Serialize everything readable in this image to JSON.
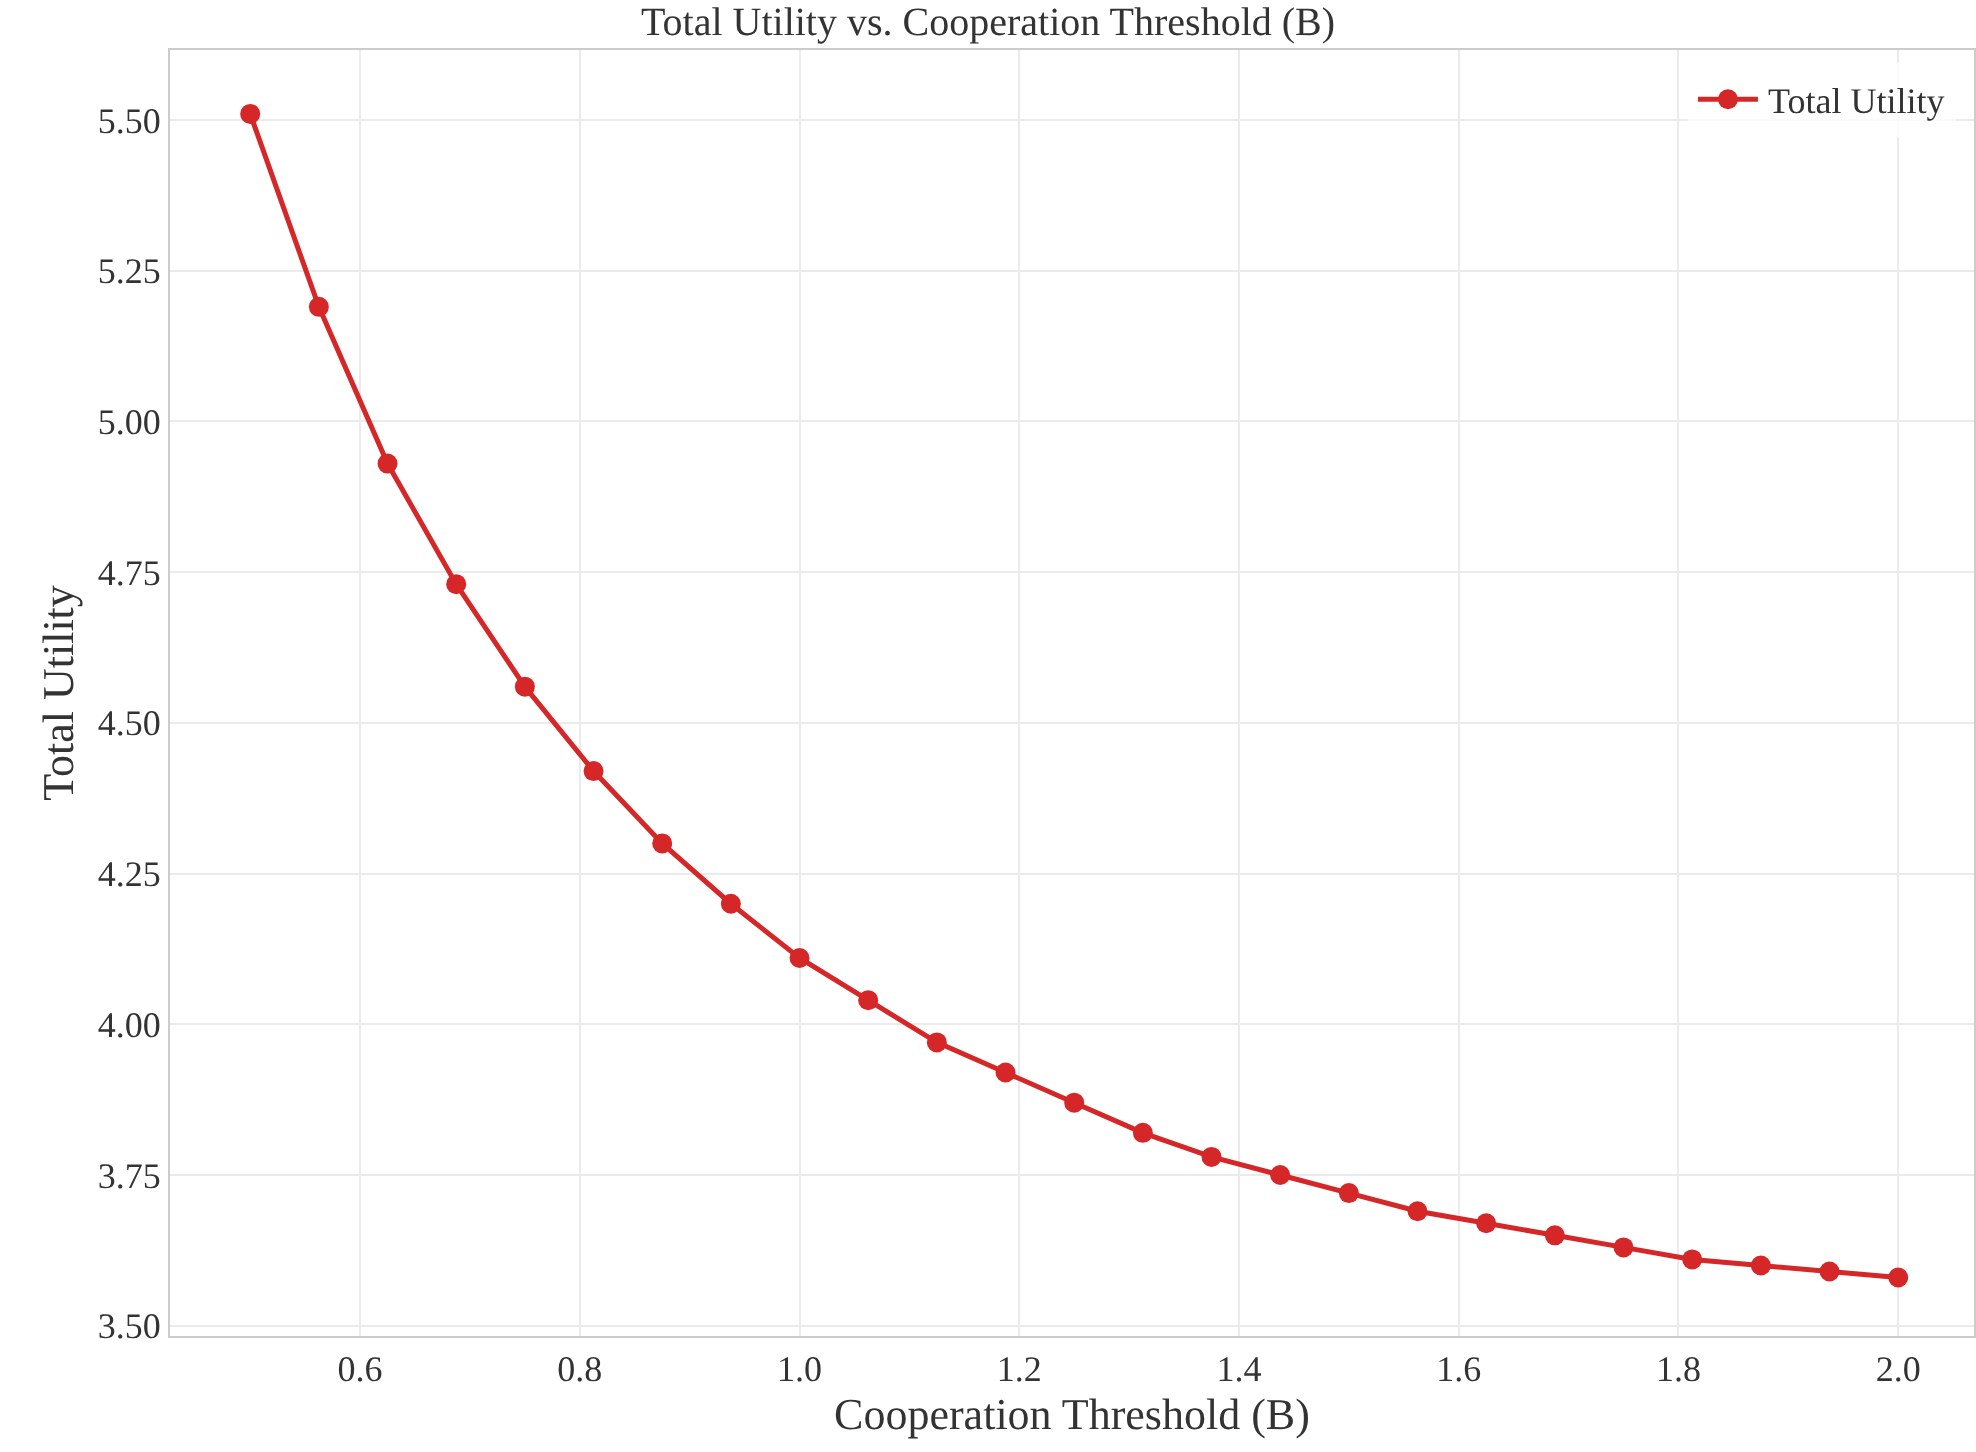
{
  "chart_data": {
    "type": "line",
    "title": "Total Utility vs. Cooperation Threshold (B)",
    "xlabel": "Cooperation Threshold (B)",
    "ylabel": "Total Utility",
    "x": [
      0.5,
      0.5625,
      0.625,
      0.6875,
      0.75,
      0.8125,
      0.875,
      0.9375,
      1.0,
      1.0625,
      1.125,
      1.1875,
      1.25,
      1.3125,
      1.375,
      1.4375,
      1.5,
      1.5625,
      1.625,
      1.6875,
      1.75,
      1.8125,
      1.875,
      1.9375,
      2.0
    ],
    "series": [
      {
        "name": "Total Utility",
        "color": "#d62728",
        "values": [
          5.51,
          5.19,
          4.93,
          4.73,
          4.56,
          4.42,
          4.3,
          4.2,
          4.11,
          4.04,
          3.97,
          3.92,
          3.87,
          3.82,
          3.78,
          3.75,
          3.72,
          3.69,
          3.67,
          3.65,
          3.63,
          3.61,
          3.6,
          3.59,
          3.58
        ]
      }
    ],
    "xlim": [
      0.427,
      2.069
    ],
    "ylim": [
      3.483,
      5.616
    ],
    "xticks": [
      0.6,
      0.8,
      {
        "value": 1,
        "label": "1.0"
      },
      1.2,
      1.4,
      1.6,
      1.8,
      {
        "value": 2,
        "label": "2.0"
      }
    ],
    "yticks": [
      {
        "value": 3.5,
        "label": "3.50"
      },
      {
        "value": 3.75,
        "label": "3.75"
      },
      {
        "value": 4.0,
        "label": "4.00"
      },
      {
        "value": 4.25,
        "label": "4.25"
      },
      {
        "value": 4.5,
        "label": "4.50"
      },
      {
        "value": 4.75,
        "label": "4.75"
      },
      {
        "value": 5.0,
        "label": "5.00"
      },
      {
        "value": 5.25,
        "label": "5.25"
      },
      {
        "value": 5.5,
        "label": "5.50"
      }
    ],
    "grid": true,
    "legend": "top right",
    "marker": "circle",
    "line_style": "solid"
  }
}
